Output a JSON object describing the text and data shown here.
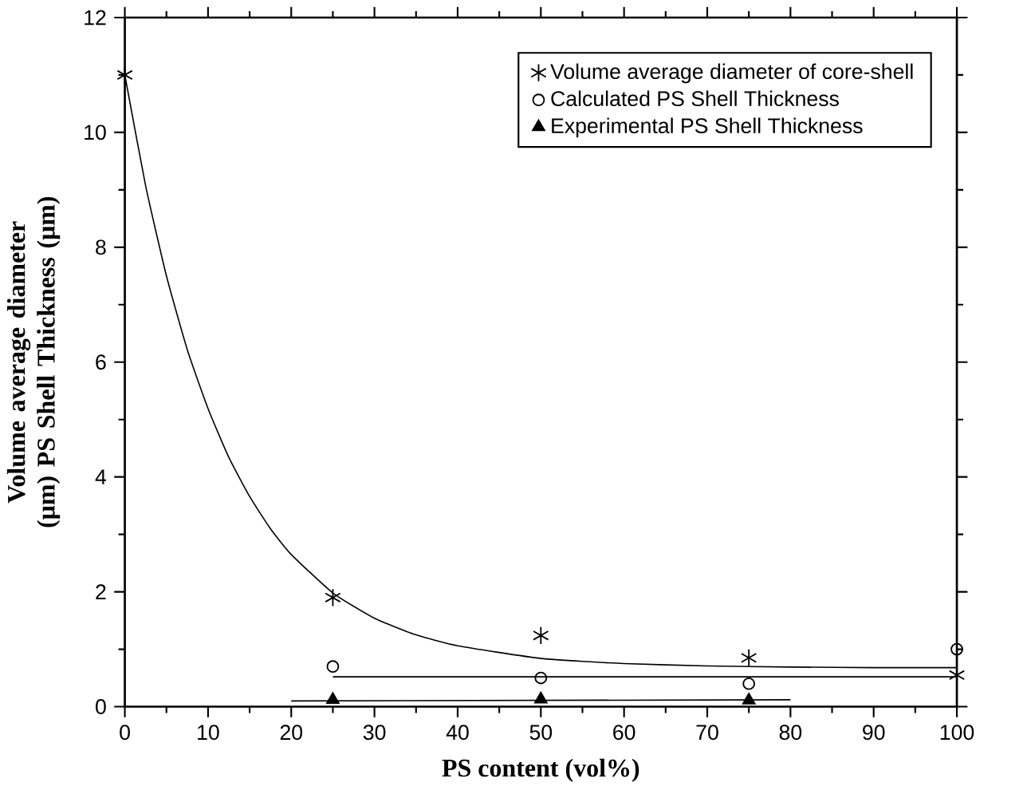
{
  "chart_data": {
    "type": "scatter",
    "xlabel": "PS content (vol%)",
    "ylabel": "Volume average diameter (μm) PS Shell Thickness (μm)",
    "xlim": [
      0,
      100
    ],
    "xticks": [
      0,
      10,
      20,
      30,
      40,
      50,
      60,
      70,
      80,
      90,
      100
    ],
    "ylim": [
      0,
      12
    ],
    "yticks": [
      0,
      2,
      4,
      6,
      8,
      10,
      12
    ],
    "legend": "top right",
    "grid": false,
    "series": [
      {
        "name": "Volume average diameter of core-shell",
        "color": "#000000",
        "marker": "cross",
        "x": [
          0,
          25,
          50,
          75,
          100
        ],
        "values": [
          11.0,
          1.9,
          1.24,
          0.85,
          0.55
        ]
      },
      {
        "name": "Calculated PS Shell Thickness",
        "color": "#000000",
        "marker": "circle",
        "x": [
          25,
          50,
          75,
          100
        ],
        "values": [
          0.7,
          0.5,
          0.4,
          1.0
        ]
      },
      {
        "name": "Experimental PS Shell Thickness",
        "color": "#000000",
        "marker": "triangle",
        "x": [
          25,
          50,
          75
        ],
        "values": [
          0.12,
          0.13,
          0.11
        ]
      },
      {
        "type": "line",
        "color": "#000000",
        "x": [
          0,
          2.5,
          5,
          7.5,
          10,
          12.5,
          15,
          17.5,
          20,
          25,
          30,
          35,
          40,
          50,
          60,
          70,
          80,
          90,
          100
        ],
        "values": [
          11.0,
          9.07,
          7.5,
          6.22,
          5.19,
          4.34,
          3.66,
          3.1,
          2.65,
          1.98,
          1.54,
          1.25,
          1.06,
          0.84,
          0.75,
          0.71,
          0.69,
          0.68,
          0.68
        ]
      },
      {
        "type": "line",
        "color": "#000000",
        "x": [
          25,
          100
        ],
        "values": [
          0.52,
          0.52
        ]
      },
      {
        "type": "line",
        "color": "#000000",
        "x": [
          20,
          80
        ],
        "values": [
          0.1,
          0.12
        ]
      }
    ]
  }
}
